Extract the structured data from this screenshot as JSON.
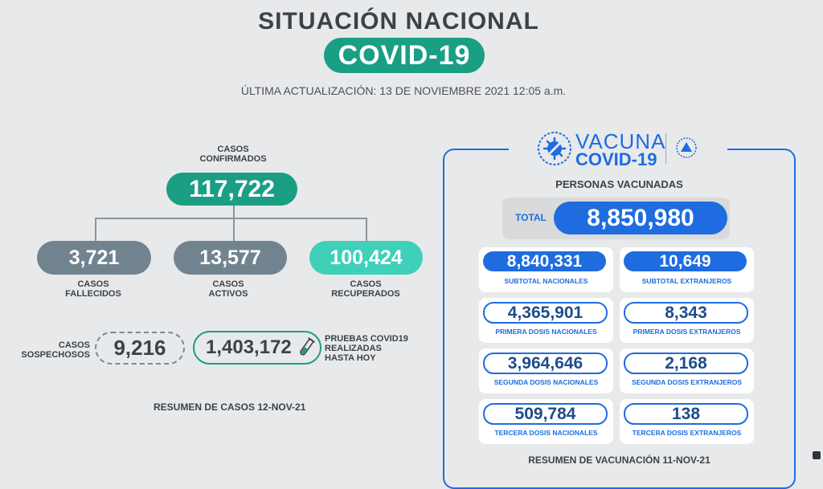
{
  "header": {
    "title": "SITUACIÓN NACIONAL",
    "badge": "COVID-19",
    "updated": "ÚLTIMA ACTUALIZACIÓN: 13 DE NOVIEMBRE 2021 12:05 a.m."
  },
  "cases": {
    "confirmed_label": "CASOS\nCONFIRMADOS",
    "confirmed": "117,722",
    "deaths": "3,721",
    "deaths_label": "CASOS\nFALLECIDOS",
    "active": "13,577",
    "active_label": "CASOS\nACTIVOS",
    "recovered": "100,424",
    "recovered_label": "CASOS\nRECUPERADOS",
    "suspect_label": "CASOS\nSOSPECHOSOS",
    "suspect": "9,216",
    "tests": "1,403,172",
    "tests_label": "PRUEBAS COVID19\nREALIZADAS\nHASTA HOY",
    "summary": "RESUMEN DE CASOS 12-NOV-21"
  },
  "vaccination": {
    "logo_word": "VACUNA",
    "logo_covid": "COVID-19",
    "heading": "PERSONAS VACUNADAS",
    "total_label": "TOTAL",
    "total": "8,850,980",
    "cards": [
      {
        "value": "8,840,331",
        "label": "SUBTOTAL NACIONALES"
      },
      {
        "value": "10,649",
        "label": "SUBTOTAL EXTRANJEROS"
      },
      {
        "value": "4,365,901",
        "label": "PRIMERA DOSIS NACIONALES"
      },
      {
        "value": "8,343",
        "label": "PRIMERA DOSIS EXTRANJEROS"
      },
      {
        "value": "3,964,646",
        "label": "SEGUNDA DOSIS NACIONALES"
      },
      {
        "value": "2,168",
        "label": "SEGUNDA DOSIS EXTRANJEROS"
      },
      {
        "value": "509,784",
        "label": "TERCERA DOSIS NACIONALES"
      },
      {
        "value": "138",
        "label": "TERCERA DOSIS EXTRANJEROS"
      }
    ],
    "summary": "RESUMEN DE VACUNACIÓN 11-NOV-21"
  },
  "colors": {
    "green": "#1a9e84",
    "mint": "#3fd0b9",
    "slate": "#728390",
    "blue": "#1e6ce0"
  }
}
